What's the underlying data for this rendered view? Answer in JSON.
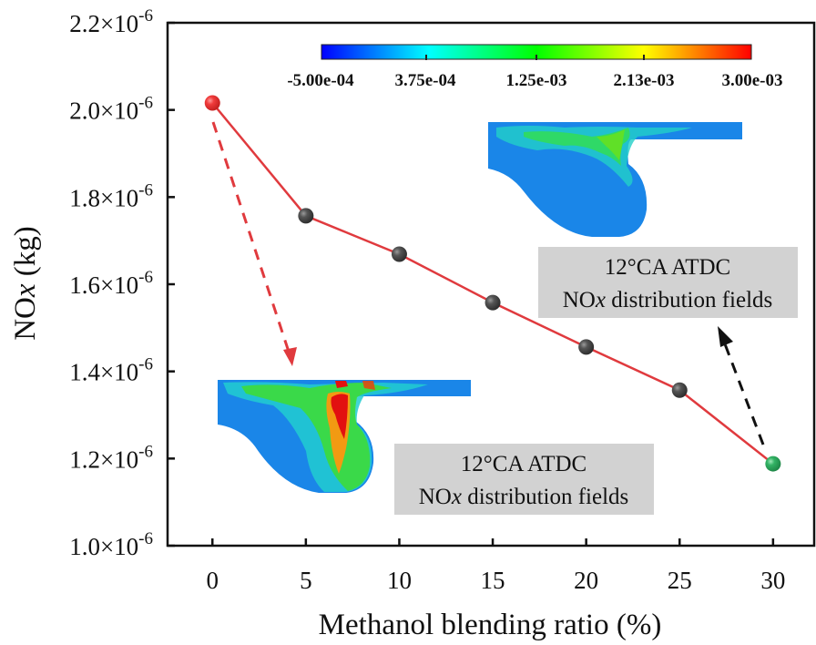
{
  "chart_data": {
    "type": "line",
    "title": "",
    "xlabel": "Methanol blending ratio (%)",
    "ylabel_main": "NO",
    "ylabel_italic": "x",
    "ylabel_unit": " (kg)",
    "x": [
      0,
      5,
      10,
      15,
      20,
      25,
      30
    ],
    "series": [
      {
        "name": "NOx",
        "values": [
          2.016e-06,
          1.757e-06,
          1.669e-06,
          1.558e-06,
          1.456e-06,
          1.357e-06,
          1.188e-06
        ],
        "line_color": "#e03a3e",
        "marker_colors": [
          "#ee3b3b",
          "#444444",
          "#444444",
          "#444444",
          "#444444",
          "#444444",
          "#2eaa5e"
        ]
      }
    ],
    "xlim": [
      -2.4,
      32.2
    ],
    "ylim": [
      1e-06,
      2.2e-06
    ],
    "xticks": [
      0,
      5,
      10,
      15,
      20,
      25,
      30
    ],
    "xtick_labels": [
      "0",
      "5",
      "10",
      "15",
      "20",
      "25",
      "30"
    ],
    "yticks": [
      1e-06,
      1.2e-06,
      1.4e-06,
      1.6e-06,
      1.8e-06,
      2e-06,
      2.2e-06
    ],
    "ytick_mantissas": [
      "1.0",
      "1.2",
      "1.4",
      "1.6",
      "1.8",
      "2.0",
      "2.2"
    ],
    "ytick_base": "×10",
    "ytick_exponent": "-6",
    "grid": false,
    "colorbar": {
      "labels": [
        "-5.00e-04",
        "3.75e-04",
        "1.25e-03",
        "2.13e-03",
        "3.00e-03"
      ],
      "colors": [
        "#0000ff",
        "#00ffff",
        "#00ff00",
        "#ffff00",
        "#ff0000"
      ],
      "placement": "top-center"
    },
    "annotations": [
      {
        "line1": "12°CA ATDC",
        "line2_main": "NO",
        "line2_italic": "x",
        "line2_rest": " distribution fields",
        "refers_to_x": 0,
        "arrow_color": "#e03a3e"
      },
      {
        "line1": "12°CA ATDC",
        "line2_main": "NO",
        "line2_italic": "x",
        "line2_rest": " distribution fields",
        "refers_to_x": 30,
        "arrow_color": "#111111"
      }
    ]
  }
}
